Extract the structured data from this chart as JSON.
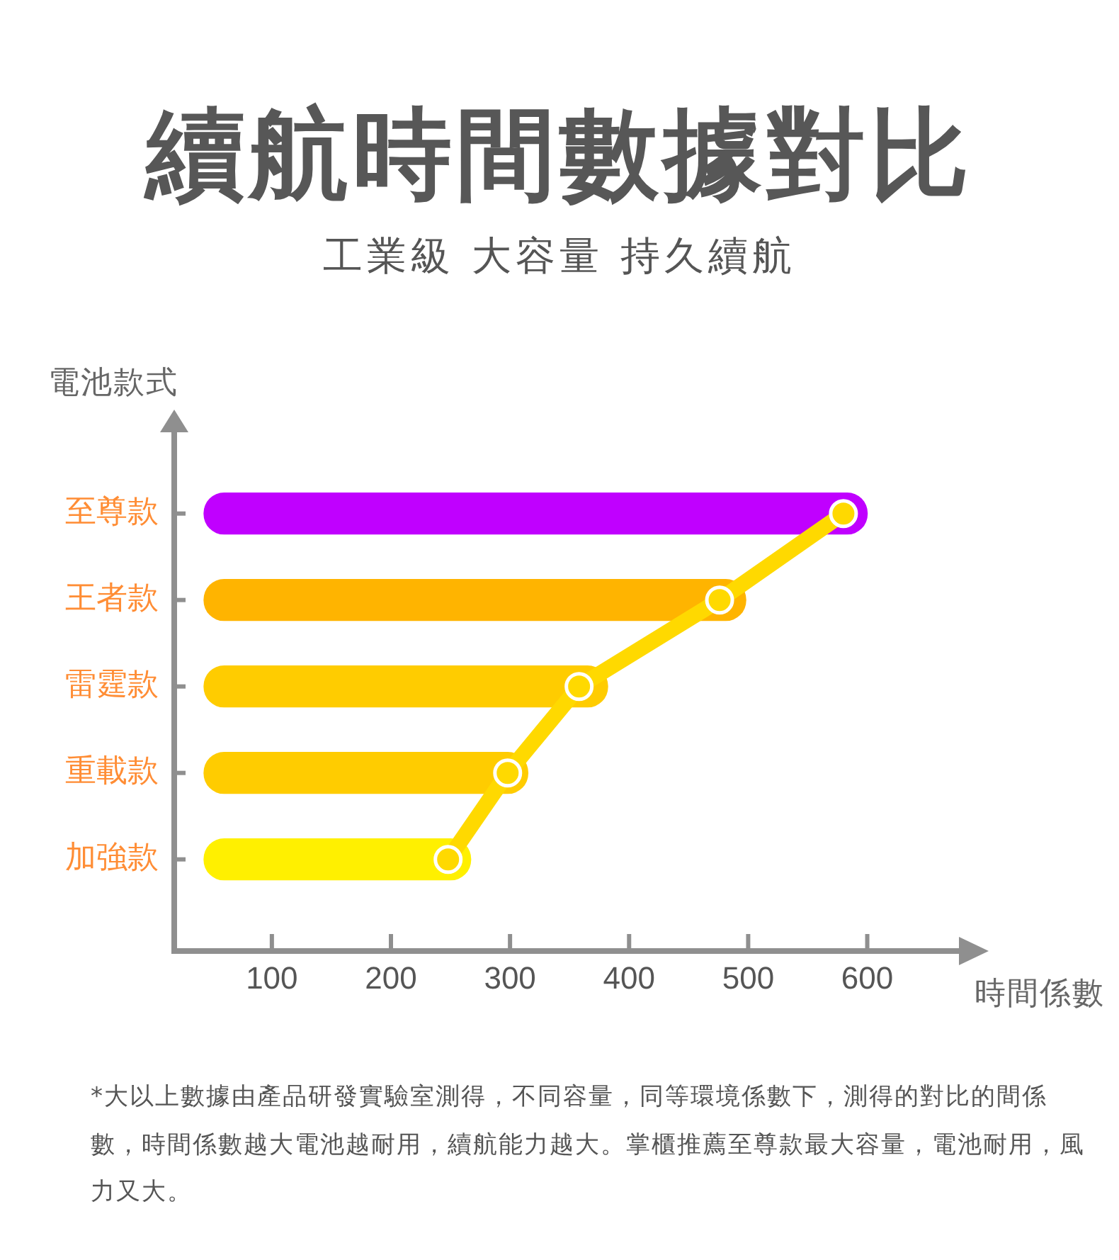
{
  "chart_data": {
    "type": "bar",
    "orientation": "horizontal",
    "title": "續航時間數據對比",
    "subtitle": "工業級 大容量 持久續航",
    "xlabel": "時間係數",
    "ylabel": "電池款式",
    "categories": [
      "至尊款",
      "王者款",
      "雷霆款",
      "重載款",
      "加強款"
    ],
    "series": [
      {
        "base": [
          43,
          43,
          43,
          43,
          43
        ],
        "values": [
          557,
          455,
          339,
          272,
          224
        ],
        "colors": [
          "#c000ff",
          "#ffb400",
          "#ffcc00",
          "#ffcc00",
          "#fff000"
        ]
      },
      {
        "type": "line",
        "values": [
          580,
          476,
          358,
          298,
          248
        ],
        "color": "#ffd900"
      }
    ],
    "marker": "circle",
    "line_style": "solid",
    "xlim": [
      18,
      677
    ],
    "xticks": [
      100,
      200,
      300,
      400,
      500,
      600
    ],
    "annotations": [
      "*大以上數據由產品研發實驗室測得，不同容量，同等環境係數下，測得的對比的間係數，時間係數越大電池越耐用，續航能力越大。掌櫃推薦至尊款最大容量，電池耐用，風力又大。"
    ]
  }
}
